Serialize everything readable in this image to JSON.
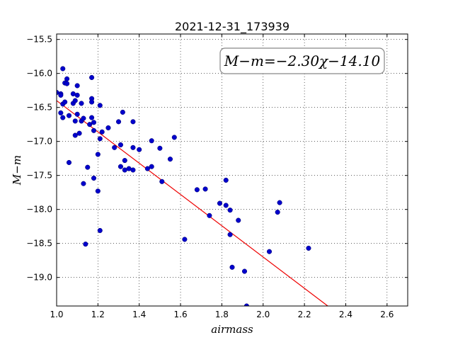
{
  "chart_data": {
    "type": "scatter",
    "title": "2021-12-31_173939",
    "xlabel": "airmass",
    "ylabel": "M−m",
    "annotation": "M−m=−2.30χ−14.10",
    "xlim": [
      1.0,
      2.7
    ],
    "ylim": [
      -19.42,
      -15.42
    ],
    "xticks": [
      1.0,
      1.2,
      1.4,
      1.6,
      1.8,
      2.0,
      2.2,
      2.4,
      2.6
    ],
    "xtick_labels": [
      "1.0",
      "1.2",
      "1.4",
      "1.6",
      "1.8",
      "2.0",
      "2.2",
      "2.4",
      "2.6"
    ],
    "yticks": [
      -15.5,
      -16.0,
      -16.5,
      -17.0,
      -17.5,
      -18.0,
      -18.5,
      -19.0
    ],
    "ytick_labels": [
      "−15.5",
      "−16.0",
      "−16.5",
      "−17.0",
      "−17.5",
      "−18.0",
      "−18.5",
      "−19.0"
    ],
    "grid": true,
    "point_color": "#0000cc",
    "fit_color": "#ee0000",
    "fit": {
      "slope": -2.3,
      "intercept": -14.1
    },
    "points": [
      [
        1.0,
        -16.28
      ],
      [
        1.02,
        -16.3
      ],
      [
        1.02,
        -16.32
      ],
      [
        1.02,
        -16.58
      ],
      [
        1.03,
        -16.45
      ],
      [
        1.03,
        -16.65
      ],
      [
        1.03,
        -15.93
      ],
      [
        1.04,
        -16.14
      ],
      [
        1.04,
        -16.42
      ],
      [
        1.05,
        -16.08
      ],
      [
        1.05,
        -16.15
      ],
      [
        1.06,
        -17.31
      ],
      [
        1.06,
        -16.62
      ],
      [
        1.08,
        -16.3
      ],
      [
        1.08,
        -16.44
      ],
      [
        1.09,
        -16.4
      ],
      [
        1.09,
        -16.91
      ],
      [
        1.09,
        -16.7
      ],
      [
        1.1,
        -16.6
      ],
      [
        1.1,
        -16.18
      ],
      [
        1.1,
        -16.32
      ],
      [
        1.11,
        -16.88
      ],
      [
        1.12,
        -16.44
      ],
      [
        1.12,
        -16.7
      ],
      [
        1.13,
        -16.66
      ],
      [
        1.13,
        -17.62
      ],
      [
        1.14,
        -18.51
      ],
      [
        1.15,
        -17.38
      ],
      [
        1.16,
        -16.75
      ],
      [
        1.17,
        -16.06
      ],
      [
        1.17,
        -16.37
      ],
      [
        1.17,
        -16.42
      ],
      [
        1.17,
        -16.65
      ],
      [
        1.18,
        -16.72
      ],
      [
        1.18,
        -17.54
      ],
      [
        1.18,
        -16.84
      ],
      [
        1.2,
        -17.73
      ],
      [
        1.2,
        -17.19
      ],
      [
        1.21,
        -16.96
      ],
      [
        1.21,
        -16.47
      ],
      [
        1.21,
        -18.31
      ],
      [
        1.22,
        -16.86
      ],
      [
        1.25,
        -16.8
      ],
      [
        1.28,
        -17.09
      ],
      [
        1.3,
        -16.71
      ],
      [
        1.31,
        -17.37
      ],
      [
        1.31,
        -17.05
      ],
      [
        1.32,
        -16.57
      ],
      [
        1.33,
        -17.28
      ],
      [
        1.33,
        -17.42
      ],
      [
        1.35,
        -17.4
      ],
      [
        1.37,
        -17.42
      ],
      [
        1.37,
        -16.71
      ],
      [
        1.37,
        -17.09
      ],
      [
        1.4,
        -17.12
      ],
      [
        1.44,
        -17.4
      ],
      [
        1.46,
        -17.37
      ],
      [
        1.46,
        -16.99
      ],
      [
        1.5,
        -17.1
      ],
      [
        1.51,
        -17.59
      ],
      [
        1.55,
        -17.26
      ],
      [
        1.57,
        -16.94
      ],
      [
        1.62,
        -18.44
      ],
      [
        1.68,
        -17.71
      ],
      [
        1.72,
        -17.7
      ],
      [
        1.74,
        -18.09
      ],
      [
        1.79,
        -17.91
      ],
      [
        1.82,
        -17.94
      ],
      [
        1.82,
        -17.57
      ],
      [
        1.84,
        -18.01
      ],
      [
        1.84,
        -18.37
      ],
      [
        1.85,
        -18.85
      ],
      [
        1.88,
        -18.16
      ],
      [
        1.91,
        -18.91
      ],
      [
        1.92,
        -19.42
      ],
      [
        2.03,
        -18.62
      ],
      [
        2.07,
        -18.04
      ],
      [
        2.08,
        -17.9
      ],
      [
        2.22,
        -18.57
      ]
    ]
  }
}
